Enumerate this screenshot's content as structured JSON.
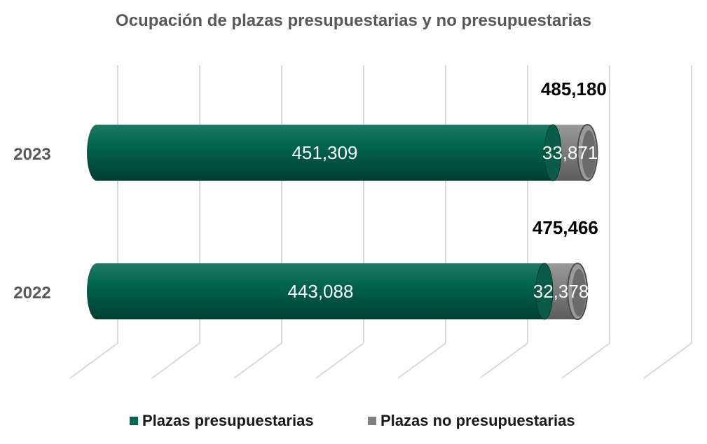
{
  "colors": {
    "presupuestarias": "#00664f",
    "presupuestarias_dark": "#004c3a",
    "presupuestarias_light": "#2f8a72",
    "no_presupuestarias": "#808080",
    "no_presupuestarias_dark": "#5a5a5a",
    "no_presupuestarias_light": "#a6a6a6",
    "grid": "#d9d9d9",
    "axis_text": "#595959"
  },
  "chart_data": {
    "type": "bar",
    "orientation": "horizontal",
    "stacked": true,
    "style": "3d-cylinder",
    "title": "Ocupación de plazas presupuestarias y no presupuestarias",
    "categories": [
      "2023",
      "2022"
    ],
    "series": [
      {
        "name": "Plazas presupuestarias",
        "values": [
          451309,
          443088
        ],
        "value_labels": [
          "451,309",
          "443,088"
        ]
      },
      {
        "name": "Plazas no presupuestarias",
        "values": [
          33871,
          32378
        ],
        "value_labels": [
          "33,871",
          "32,378"
        ]
      }
    ],
    "totals": [
      485180,
      475466
    ],
    "total_labels": [
      "485,180",
      "475,466"
    ],
    "xlim": [
      0,
      500000
    ],
    "grid": true,
    "legend": "bottom"
  }
}
